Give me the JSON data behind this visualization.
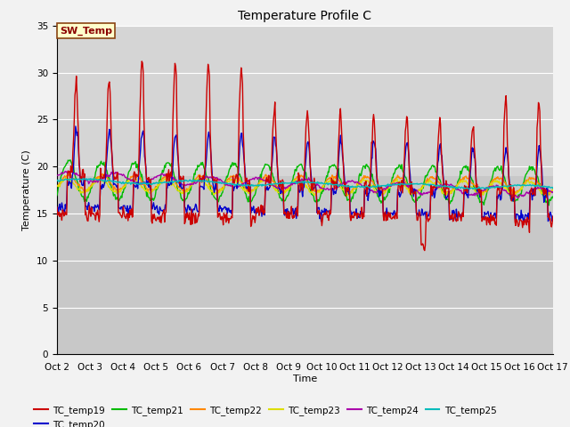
{
  "title": "Temperature Profile C",
  "xlabel": "Time",
  "ylabel": "Temperature (C)",
  "ylim": [
    0,
    35
  ],
  "yticks": [
    0,
    5,
    10,
    15,
    20,
    25,
    30,
    35
  ],
  "xlim": [
    0,
    15
  ],
  "xtick_labels": [
    "Oct 2",
    "Oct 3",
    "Oct 4",
    "Oct 5",
    "Oct 6",
    "Oct 7",
    "Oct 8",
    "Oct 9",
    "Oct 10",
    "Oct 11",
    "Oct 12",
    "Oct 13",
    "Oct 14",
    "Oct 15",
    "Oct 16",
    "Oct 17"
  ],
  "xtick_positions": [
    0,
    1,
    2,
    3,
    4,
    5,
    6,
    7,
    8,
    9,
    10,
    11,
    12,
    13,
    14,
    15
  ],
  "series": {
    "TC_temp19": {
      "color": "#cc0000",
      "lw": 1.0
    },
    "TC_temp20": {
      "color": "#0000cc",
      "lw": 1.0
    },
    "TC_temp21": {
      "color": "#00bb00",
      "lw": 1.0
    },
    "TC_temp22": {
      "color": "#ff8800",
      "lw": 1.0
    },
    "TC_temp23": {
      "color": "#dddd00",
      "lw": 1.0
    },
    "TC_temp24": {
      "color": "#aa00aa",
      "lw": 1.0
    },
    "TC_temp25": {
      "color": "#00bbbb",
      "lw": 1.0
    }
  },
  "annotation": {
    "text": "SW_Temp",
    "fontsize": 8,
    "color": "#8B0000",
    "bbox_facecolor": "#ffffcc",
    "bbox_edgecolor": "#8B4513"
  },
  "upper_band_color": "#d8d8d8",
  "lower_band_color": "#c8c8c8",
  "band_threshold": 19.0,
  "title_fontsize": 10,
  "axis_label_fontsize": 8,
  "tick_fontsize": 7.5,
  "legend_fontsize": 7.5,
  "fig_bg": "#f2f2f2"
}
